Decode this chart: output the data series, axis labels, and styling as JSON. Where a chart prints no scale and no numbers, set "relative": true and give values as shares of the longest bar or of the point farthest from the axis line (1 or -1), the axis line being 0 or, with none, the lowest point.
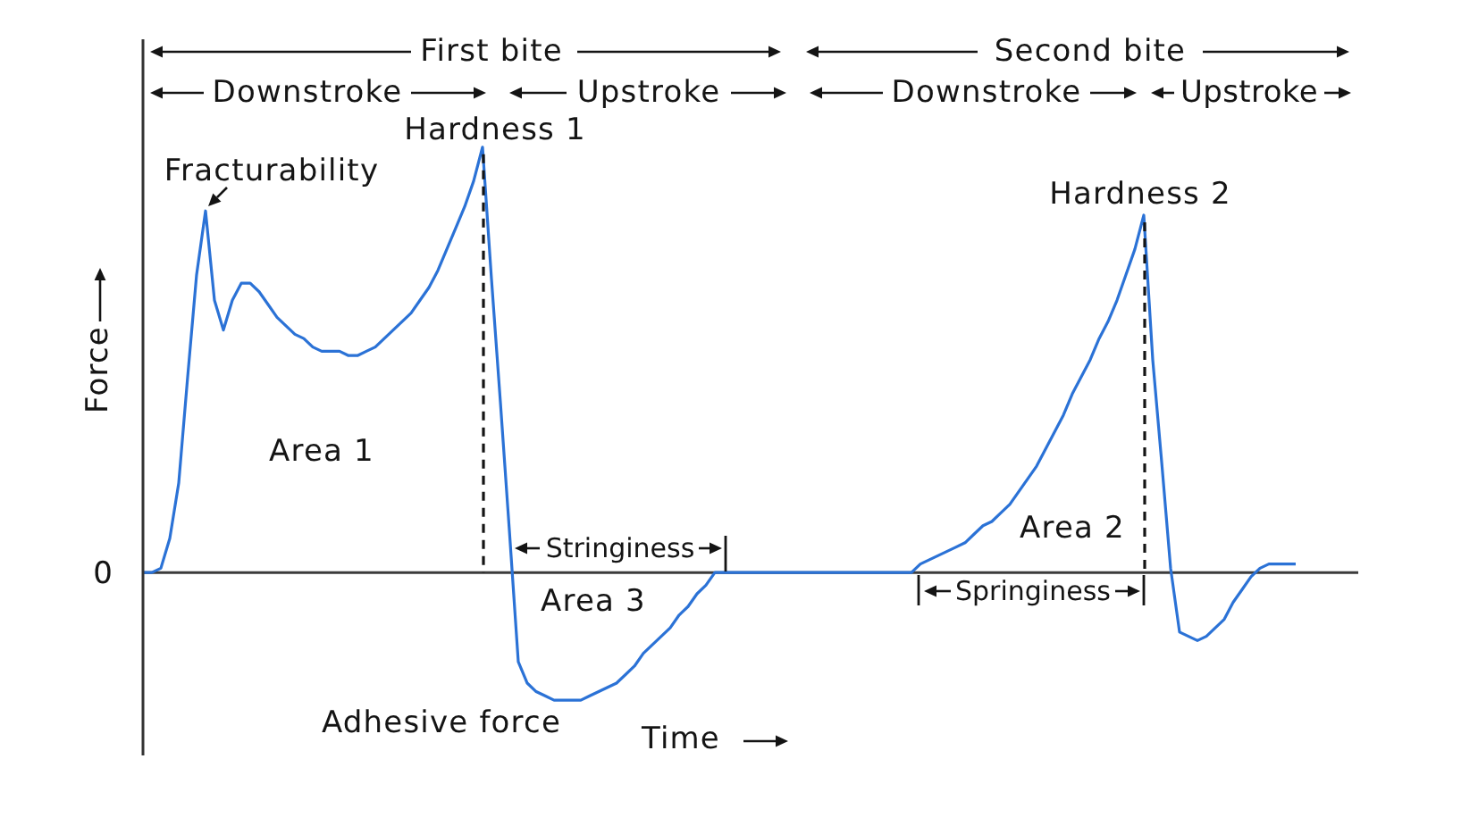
{
  "chart_data": {
    "type": "line",
    "relative": true,
    "xlabel": "Time",
    "ylabel": "Force",
    "color": "#2b72d6",
    "categories": [
      null,
      null,
      null,
      null,
      null,
      null,
      null,
      null,
      null,
      null,
      null,
      null,
      null,
      null,
      null,
      null,
      null,
      null,
      null,
      null,
      null,
      null,
      null,
      null,
      null,
      null,
      null,
      null,
      null,
      null,
      null,
      null,
      null,
      null,
      null,
      null,
      null,
      null,
      null,
      null,
      null,
      null,
      null,
      null,
      null,
      null,
      null,
      null,
      null,
      null,
      null,
      null,
      null,
      null,
      null,
      null,
      null,
      null,
      null,
      null,
      null,
      null,
      null,
      null,
      null,
      null,
      null,
      null,
      null,
      null,
      null,
      null,
      null,
      null,
      null,
      null,
      null,
      null,
      null,
      null,
      null,
      null,
      null,
      null,
      null,
      null,
      null,
      null,
      null,
      null,
      null,
      null,
      null,
      null,
      null,
      null,
      null,
      null,
      null,
      null,
      null,
      null,
      null,
      null,
      null,
      null,
      null,
      null,
      null,
      null,
      null,
      null,
      null,
      null,
      null,
      null,
      null,
      null,
      null,
      null,
      null,
      null,
      null,
      null,
      null,
      null,
      null,
      null,
      null,
      null
    ],
    "values": [
      0,
      0,
      0.01,
      0.08,
      0.21,
      0.46,
      0.7,
      0.85,
      0.64,
      0.57,
      0.64,
      0.68,
      0.68,
      0.66,
      0.63,
      0.6,
      0.58,
      0.56,
      0.55,
      0.53,
      0.52,
      0.52,
      0.52,
      0.51,
      0.51,
      0.52,
      0.53,
      0.55,
      0.57,
      0.59,
      0.61,
      0.64,
      0.67,
      0.71,
      0.76,
      0.81,
      0.86,
      0.92,
      1,
      0.69,
      0.4,
      0.1,
      -0.21,
      -0.26,
      -0.28,
      -0.29,
      -0.3,
      -0.3,
      -0.3,
      -0.3,
      -0.29,
      -0.28,
      -0.27,
      -0.26,
      -0.24,
      -0.22,
      -0.19,
      -0.17,
      -0.15,
      -0.13,
      -0.1,
      -0.08,
      -0.05,
      -0.03,
      0,
      0,
      0,
      0,
      0,
      0,
      0,
      0,
      0,
      0,
      0,
      0,
      0,
      0,
      0,
      0,
      0,
      0,
      0,
      0,
      0,
      0,
      0,
      0.02,
      0.03,
      0.04,
      0.05,
      0.06,
      0.07,
      0.09,
      0.11,
      0.12,
      0.14,
      0.16,
      0.19,
      0.22,
      0.25,
      0.29,
      0.33,
      0.37,
      0.42,
      0.46,
      0.5,
      0.55,
      0.59,
      0.64,
      0.7,
      0.76,
      0.84,
      0.5,
      0.26,
      0.01,
      -0.14,
      -0.15,
      -0.16,
      -0.15,
      -0.13,
      -0.11,
      -0.07,
      -0.04,
      -0.01,
      0.01,
      0.02,
      0.02,
      0.02,
      0.02
    ],
    "ref_lines": [
      {
        "axis": "y",
        "value": 0,
        "label": "0",
        "color": "#3c3c3c"
      }
    ],
    "annotations": [
      "First bite",
      "Second bite",
      "Downstroke",
      "Upstroke",
      "Downstroke",
      "Upstroke",
      "Hardness 1",
      "Fracturability",
      "Hardness 2",
      "Area 1",
      "Stringiness",
      "Area 3",
      "Area 2",
      "Springiness",
      "Adhesive force"
    ]
  }
}
